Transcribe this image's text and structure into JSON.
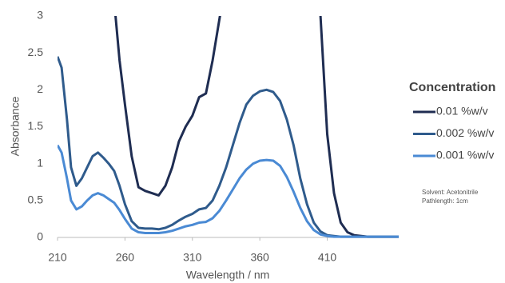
{
  "chart_data": {
    "type": "line",
    "y_label": "Absorbance",
    "x_label": "Wavelength / nm",
    "legend_title": "Concentration",
    "annotations": [
      "Solvent: Acetonitrile",
      "Pathlength: 1cm"
    ],
    "legend_position": "right",
    "grid": false,
    "xlim": [
      210,
      463
    ],
    "xticks": [
      210,
      260,
      310,
      360,
      410
    ],
    "ylim": [
      0,
      3
    ],
    "yticks": [
      0,
      0.5,
      1,
      1.5,
      2,
      2.5,
      3
    ],
    "x": [
      210,
      213,
      217,
      220,
      224,
      228,
      232,
      236,
      240,
      244,
      248,
      252,
      256,
      260,
      265,
      270,
      275,
      280,
      285,
      290,
      295,
      300,
      305,
      310,
      315,
      320,
      325,
      330,
      335,
      340,
      345,
      350,
      355,
      360,
      365,
      370,
      375,
      380,
      385,
      390,
      395,
      400,
      405,
      410,
      415,
      420,
      425,
      430,
      440,
      450,
      463
    ],
    "series": [
      {
        "name": "0.01 %w/v",
        "color": "#1f2d52",
        "values": [
          null,
          null,
          null,
          null,
          null,
          null,
          null,
          null,
          null,
          null,
          4.0,
          3.2,
          2.4,
          1.8,
          1.1,
          0.68,
          0.63,
          0.6,
          0.57,
          0.7,
          0.95,
          1.3,
          1.5,
          1.65,
          1.9,
          1.95,
          2.4,
          2.95,
          3.5,
          null,
          null,
          null,
          null,
          null,
          null,
          null,
          null,
          null,
          null,
          null,
          null,
          4.0,
          3.0,
          1.4,
          0.6,
          0.2,
          0.07,
          0.03,
          0.01,
          0.01,
          0.01
        ]
      },
      {
        "name": "0.002 %w/v",
        "color": "#2f5b8c",
        "values": [
          2.45,
          2.3,
          1.6,
          0.95,
          0.7,
          0.8,
          0.95,
          1.1,
          1.15,
          1.08,
          1.0,
          0.9,
          0.7,
          0.45,
          0.22,
          0.13,
          0.12,
          0.12,
          0.11,
          0.13,
          0.17,
          0.23,
          0.28,
          0.32,
          0.38,
          0.4,
          0.5,
          0.7,
          0.95,
          1.25,
          1.55,
          1.8,
          1.92,
          1.98,
          2.0,
          1.97,
          1.85,
          1.6,
          1.25,
          0.8,
          0.45,
          0.2,
          0.08,
          0.03,
          0.02,
          0.01,
          0.01,
          0.01,
          0.01,
          0.01,
          0.01
        ]
      },
      {
        "name": "0.001 %w/v",
        "color": "#4a8ad4",
        "values": [
          1.25,
          1.15,
          0.8,
          0.5,
          0.38,
          0.42,
          0.5,
          0.57,
          0.6,
          0.57,
          0.52,
          0.47,
          0.37,
          0.25,
          0.12,
          0.07,
          0.06,
          0.06,
          0.06,
          0.07,
          0.09,
          0.12,
          0.15,
          0.17,
          0.2,
          0.21,
          0.26,
          0.36,
          0.5,
          0.65,
          0.8,
          0.92,
          1.0,
          1.04,
          1.05,
          1.04,
          0.97,
          0.82,
          0.62,
          0.4,
          0.22,
          0.1,
          0.04,
          0.02,
          0.01,
          0.01,
          0.01,
          0.01,
          0.01,
          0.01,
          0.01
        ]
      }
    ]
  }
}
